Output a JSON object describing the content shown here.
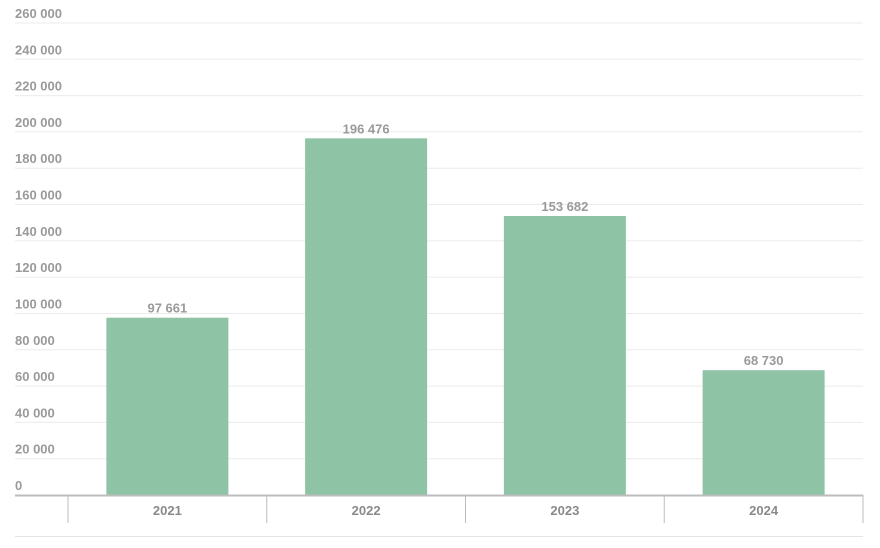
{
  "chart_data": {
    "type": "bar",
    "title": "",
    "xlabel": "",
    "ylabel": "",
    "categories": [
      "2021",
      "2022",
      "2023",
      "2024"
    ],
    "values": [
      97661,
      196476,
      153682,
      68730
    ],
    "data_labels": [
      "97 661",
      "196 476",
      "153 682",
      "68 730"
    ],
    "ylim": [
      0,
      260000
    ],
    "yticks": [
      0,
      20000,
      40000,
      60000,
      80000,
      100000,
      120000,
      140000,
      160000,
      180000,
      200000,
      220000,
      240000,
      260000
    ],
    "ytick_labels": [
      "0",
      "20 000",
      "40 000",
      "60 000",
      "80 000",
      "100 000",
      "120 000",
      "140 000",
      "160 000",
      "180 000",
      "200 000",
      "220 000",
      "240 000",
      "260 000"
    ],
    "grid": true,
    "legend": "none",
    "colors": {
      "bar": "#8fc3a6",
      "grid": "#ebebeb",
      "axis": "#bdbdbd",
      "tick_text": "#9a9a9a"
    }
  }
}
